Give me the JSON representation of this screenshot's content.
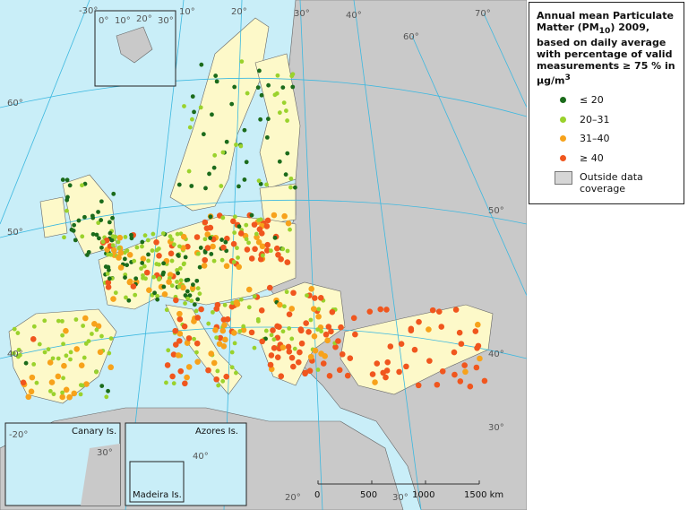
{
  "legend": {
    "title": [
      "Annual mean Particulate Matter (PM",
      "10",
      ") 2009, based on daily average with percentage of valid measurements  ≥ 75 % in μg/m",
      "3"
    ],
    "items": [
      {
        "label": "≤ 20",
        "color": "#1b6b1b"
      },
      {
        "label": "20–31",
        "color": "#9ad22c"
      },
      {
        "label": "31–40",
        "color": "#f7a21b"
      },
      {
        "label": "≥ 40",
        "color": "#f0561e"
      }
    ],
    "outside": "Outside data coverage"
  },
  "map": {
    "graticule_labels": [
      "-30°",
      "10°",
      "20°",
      "30°",
      "40°",
      "60°",
      "70°",
      "60°",
      "50°",
      "40°",
      "50°",
      "40°",
      "30°",
      "20°",
      "30°"
    ],
    "insets": {
      "svalbard": [
        "0°",
        "10°",
        "20°",
        "30°"
      ],
      "canary": {
        "name": "Canary Is.",
        "labels": [
          "-20°",
          "30°"
        ]
      },
      "azores": {
        "name": "Azores Is.",
        "labels": [
          "40°"
        ]
      },
      "madeira": {
        "name": "Madeira Is."
      }
    },
    "scale_bar": [
      "0",
      "500",
      "1000",
      "1500 km"
    ]
  }
}
